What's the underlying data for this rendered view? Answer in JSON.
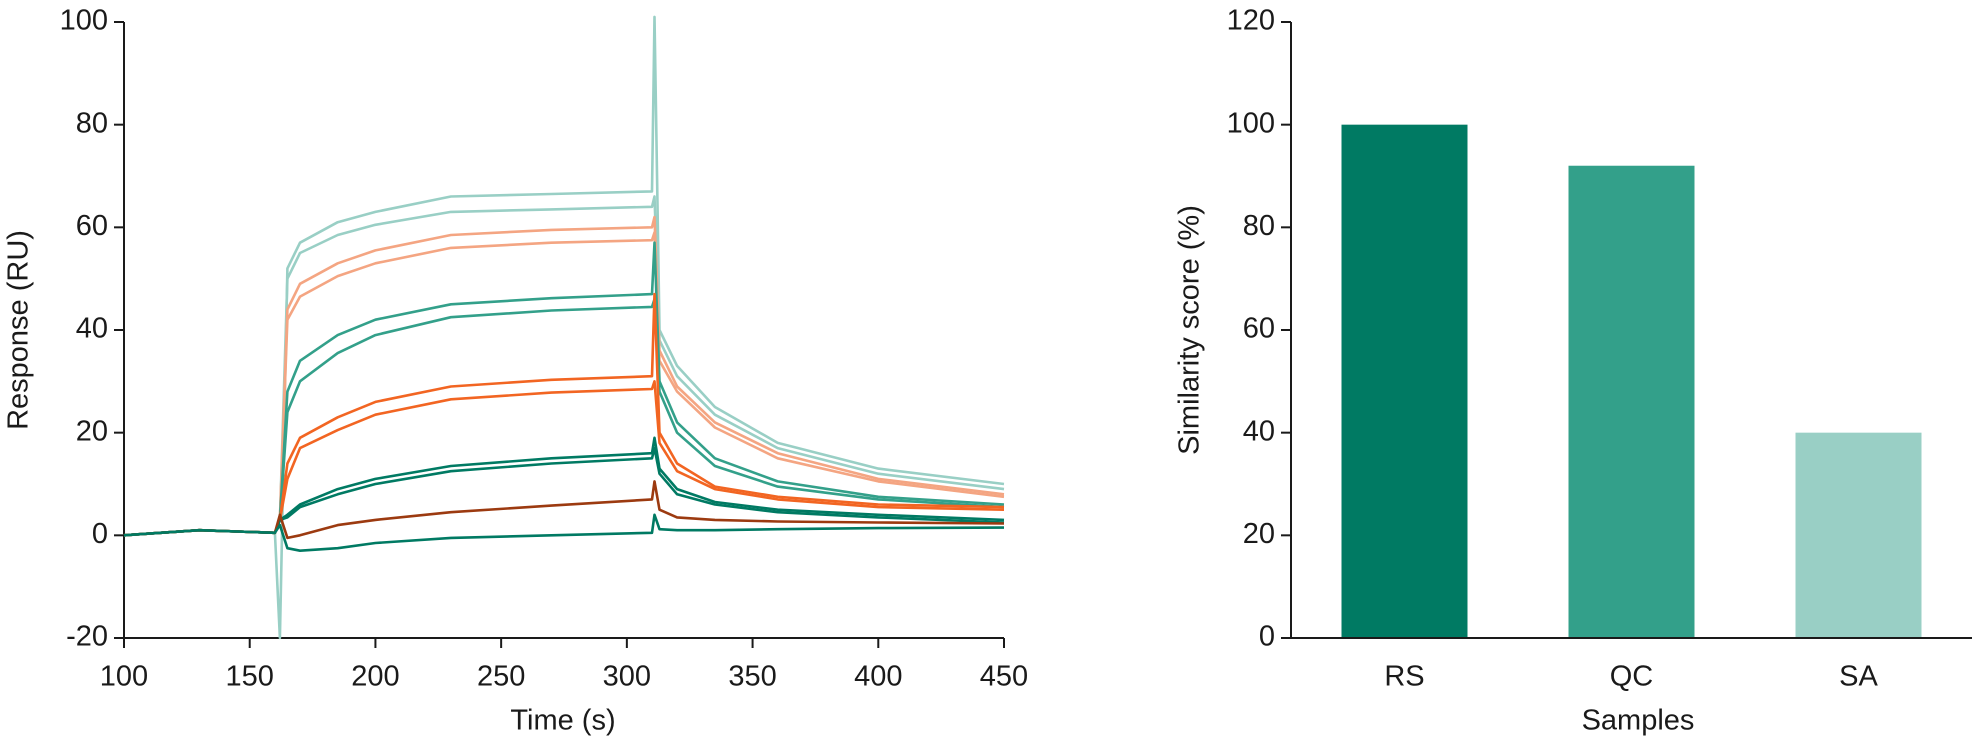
{
  "chart_data": [
    {
      "type": "line",
      "xlabel": "Time (s)",
      "ylabel": "Response (RU)",
      "xlim": [
        100,
        450
      ],
      "xticks": [
        100,
        150,
        200,
        250,
        300,
        350,
        400,
        450
      ],
      "ylim": [
        -20,
        100
      ],
      "yticks": [
        -20,
        0,
        20,
        40,
        60,
        80,
        100
      ],
      "x": [
        100,
        130,
        160,
        162,
        165,
        170,
        185,
        200,
        230,
        270,
        310,
        311,
        313,
        320,
        335,
        360,
        400,
        450
      ],
      "series": [
        {
          "color": "#99cfc5",
          "values": [
            0,
            1,
            0.5,
            -20,
            52,
            57,
            61,
            63,
            66,
            66.5,
            67,
            101,
            40,
            33,
            25,
            18,
            13,
            10
          ]
        },
        {
          "color": "#99cfc5",
          "values": [
            0,
            1,
            0.5,
            3,
            50,
            55,
            58.5,
            60.5,
            63,
            63.5,
            64,
            66,
            38,
            31,
            23.5,
            17,
            12,
            9
          ]
        },
        {
          "color": "#f4a582",
          "values": [
            0,
            1,
            0.5,
            3,
            44,
            49,
            53,
            55.5,
            58.5,
            59.5,
            60,
            62,
            36,
            29,
            22,
            16,
            11,
            8
          ]
        },
        {
          "color": "#f4a582",
          "values": [
            0,
            1,
            0.5,
            3,
            42,
            46.5,
            50.5,
            53,
            56,
            57,
            57.5,
            59,
            34,
            28,
            21,
            15,
            10.5,
            7.5
          ]
        },
        {
          "color": "#33a08a",
          "values": [
            0,
            1,
            0.5,
            3,
            28,
            34,
            39,
            42,
            45,
            46.2,
            47,
            57,
            30,
            22,
            15,
            10.5,
            7.5,
            6
          ]
        },
        {
          "color": "#33a08a",
          "values": [
            0,
            1,
            0.5,
            3,
            24,
            30,
            35.5,
            39,
            42.5,
            43.8,
            44.5,
            46,
            28,
            20,
            13.5,
            9.5,
            7,
            5.5
          ]
        },
        {
          "color": "#f26522",
          "values": [
            0,
            1,
            0.5,
            3,
            14,
            19,
            23,
            26,
            29,
            30.3,
            31,
            47,
            20,
            14,
            9.5,
            7.5,
            6,
            5.5
          ]
        },
        {
          "color": "#f26522",
          "values": [
            0,
            1,
            0.5,
            3,
            11,
            17,
            20.5,
            23.5,
            26.5,
            27.8,
            28.5,
            30,
            18,
            12.5,
            9,
            7,
            5.5,
            5
          ]
        },
        {
          "color": "#007a63",
          "values": [
            0,
            1,
            0.5,
            3,
            4,
            6,
            9,
            11,
            13.5,
            15,
            16,
            19,
            13,
            9,
            6.5,
            5,
            4,
            3
          ]
        },
        {
          "color": "#007a63",
          "values": [
            0,
            1,
            0.5,
            3,
            3.5,
            5.5,
            8,
            10,
            12.5,
            14,
            15,
            17,
            12,
            8,
            6,
            4.5,
            3.5,
            2.5
          ]
        },
        {
          "color": "#9c3a10",
          "values": [
            0,
            1,
            0.5,
            4,
            -0.5,
            0,
            2,
            3,
            4.5,
            5.8,
            7,
            10.5,
            5,
            3.5,
            3,
            2.7,
            2.5,
            2.3
          ]
        },
        {
          "color": "#007a63",
          "values": [
            0,
            1,
            0.5,
            2,
            -2.5,
            -3,
            -2.5,
            -1.5,
            -0.5,
            0,
            0.5,
            4,
            1.2,
            1,
            1,
            1.2,
            1.4,
            1.5
          ]
        }
      ]
    },
    {
      "type": "bar",
      "xlabel": "Samples",
      "ylabel": "Similarity score (%)",
      "categories": [
        "RS",
        "QC",
        "SA"
      ],
      "values": [
        100,
        92,
        40
      ],
      "colors": [
        "#007a63",
        "#33a08a",
        "#99cfc5"
      ],
      "ylim": [
        0,
        120
      ],
      "yticks": [
        0,
        20,
        40,
        60,
        80,
        100,
        120
      ]
    }
  ]
}
